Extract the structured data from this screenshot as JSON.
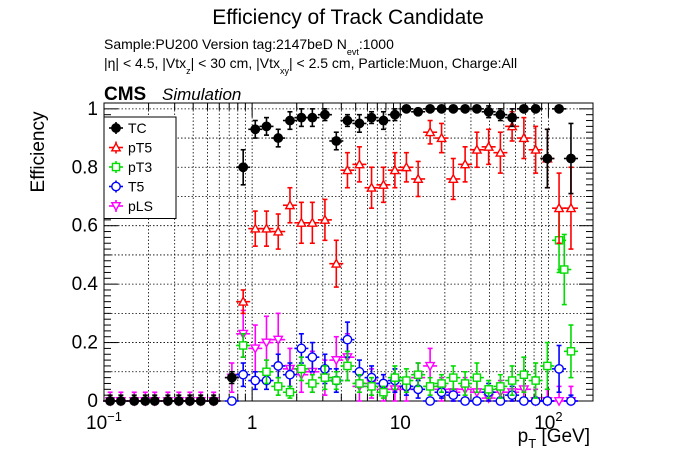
{
  "chart_data": {
    "type": "scatter",
    "title": "Efficiency of Track Candidate",
    "subtitle_lines": [
      "Sample:PU200   Version tag:2147beD  N",
      "evt",
      ":1000",
      "|η| < 4.5, |Vtx",
      "z",
      "| < 30 cm, |Vtx",
      "xy",
      "| < 2.5 cm, Particle:Muon, Charge:All"
    ],
    "cms_label": "CMS",
    "simulation_label": "Simulation",
    "ylabel": "Efficiency",
    "xlabel_main": "p",
    "xlabel_sub": "T",
    "xlabel_unit": " [GeV]",
    "x_scale": "log",
    "xlim": [
      0.1,
      200
    ],
    "ylim": [
      0,
      1.02
    ],
    "grid": true,
    "legend_position": "top-left",
    "x_tick_labels": [
      {
        "value": 0.1,
        "base": "10",
        "exp": "−1"
      },
      {
        "value": 1,
        "base": "1",
        "exp": ""
      },
      {
        "value": 10,
        "base": "10",
        "exp": ""
      },
      {
        "value": 100,
        "base": "10",
        "exp": "2"
      }
    ],
    "y_tick_labels": [
      "0",
      "0.2",
      "0.4",
      "0.6",
      "0.8",
      "1"
    ],
    "series": [
      {
        "name": "TC",
        "color": "#000000",
        "marker": "circle-filled",
        "points": [
          [
            0.11,
            0.0,
            0.02
          ],
          [
            0.13,
            0.0,
            0.02
          ],
          [
            0.16,
            0.0,
            0.02
          ],
          [
            0.19,
            0.0,
            0.02
          ],
          [
            0.22,
            0.0,
            0.02
          ],
          [
            0.27,
            0.0,
            0.02
          ],
          [
            0.32,
            0.0,
            0.02
          ],
          [
            0.38,
            0.0,
            0.02
          ],
          [
            0.45,
            0.0,
            0.02
          ],
          [
            0.55,
            0.0,
            0.02
          ],
          [
            0.73,
            0.08,
            0.02
          ],
          [
            0.87,
            0.8,
            0.06
          ],
          [
            1.05,
            0.93,
            0.03
          ],
          [
            1.25,
            0.94,
            0.03
          ],
          [
            1.5,
            0.9,
            0.03
          ],
          [
            1.8,
            0.96,
            0.03
          ],
          [
            2.15,
            0.97,
            0.03
          ],
          [
            2.55,
            0.97,
            0.03
          ],
          [
            3.1,
            0.98,
            0.02
          ],
          [
            3.7,
            0.89,
            0.03
          ],
          [
            4.4,
            0.96,
            0.02
          ],
          [
            5.3,
            0.95,
            0.03
          ],
          [
            6.4,
            0.97,
            0.02
          ],
          [
            7.7,
            0.96,
            0.03
          ],
          [
            9.2,
            0.98,
            0.02
          ],
          [
            11.0,
            1.0,
            0.01
          ],
          [
            13.2,
            0.99,
            0.01
          ],
          [
            15.9,
            1.0,
            0.01
          ],
          [
            19.0,
            1.0,
            0.01
          ],
          [
            22.8,
            1.0,
            0.01
          ],
          [
            27.4,
            1.0,
            0.01
          ],
          [
            32.9,
            1.0,
            0.01
          ],
          [
            39.5,
            0.99,
            0.02
          ],
          [
            47.4,
            0.98,
            0.02
          ],
          [
            56.9,
            0.97,
            0.03
          ],
          [
            68.3,
            1.0,
            0.01
          ],
          [
            82.0,
            1.0,
            0.01
          ],
          [
            98.4,
            0.83,
            0.1
          ],
          [
            118,
            1.0,
            0.01
          ],
          [
            142,
            0.83,
            0.12
          ]
        ]
      },
      {
        "name": "pT5",
        "color": "#ff0000",
        "marker": "triangle-open",
        "points": [
          [
            0.87,
            0.34,
            0.04
          ],
          [
            1.05,
            0.59,
            0.06
          ],
          [
            1.25,
            0.59,
            0.06
          ],
          [
            1.5,
            0.58,
            0.06
          ],
          [
            1.8,
            0.67,
            0.06
          ],
          [
            2.15,
            0.61,
            0.07
          ],
          [
            2.55,
            0.61,
            0.07
          ],
          [
            3.1,
            0.62,
            0.07
          ],
          [
            3.7,
            0.47,
            0.08
          ],
          [
            4.4,
            0.79,
            0.06
          ],
          [
            5.3,
            0.81,
            0.06
          ],
          [
            6.4,
            0.73,
            0.07
          ],
          [
            7.7,
            0.74,
            0.06
          ],
          [
            9.2,
            0.79,
            0.06
          ],
          [
            11.0,
            0.8,
            0.05
          ],
          [
            13.2,
            0.76,
            0.06
          ],
          [
            15.9,
            0.92,
            0.04
          ],
          [
            19.0,
            0.9,
            0.05
          ],
          [
            22.8,
            0.76,
            0.07
          ],
          [
            27.4,
            0.81,
            0.06
          ],
          [
            32.9,
            0.86,
            0.06
          ],
          [
            39.5,
            0.87,
            0.06
          ],
          [
            47.4,
            0.85,
            0.07
          ],
          [
            56.9,
            0.94,
            0.05
          ],
          [
            68.3,
            0.9,
            0.07
          ],
          [
            82.0,
            0.86,
            0.08
          ],
          [
            98.4,
            0.83,
            0.1
          ],
          [
            118,
            0.66,
            0.12
          ],
          [
            142,
            0.66,
            0.14
          ]
        ]
      },
      {
        "name": "pT3",
        "color": "#00dd00",
        "marker": "square-open",
        "points": [
          [
            0.87,
            0.19,
            0.04
          ],
          [
            1.25,
            0.1,
            0.04
          ],
          [
            1.5,
            0.05,
            0.03
          ],
          [
            1.8,
            0.03,
            0.02
          ],
          [
            2.15,
            0.11,
            0.04
          ],
          [
            2.55,
            0.06,
            0.03
          ],
          [
            3.1,
            0.08,
            0.04
          ],
          [
            3.7,
            0.07,
            0.03
          ],
          [
            4.4,
            0.12,
            0.05
          ],
          [
            5.3,
            0.06,
            0.03
          ],
          [
            6.4,
            0.05,
            0.03
          ],
          [
            7.7,
            0.03,
            0.02
          ],
          [
            9.2,
            0.08,
            0.04
          ],
          [
            11.0,
            0.07,
            0.04
          ],
          [
            13.2,
            0.09,
            0.04
          ],
          [
            15.9,
            0.05,
            0.03
          ],
          [
            19.0,
            0.06,
            0.03
          ],
          [
            22.8,
            0.08,
            0.04
          ],
          [
            27.4,
            0.06,
            0.04
          ],
          [
            32.9,
            0.08,
            0.05
          ],
          [
            39.5,
            0.04,
            0.03
          ],
          [
            47.4,
            0.05,
            0.04
          ],
          [
            56.9,
            0.07,
            0.05
          ],
          [
            68.3,
            0.09,
            0.06
          ],
          [
            82.0,
            0.07,
            0.06
          ],
          [
            98.4,
            0.12,
            0.08
          ],
          [
            118,
            0.55,
            0.11
          ],
          [
            128,
            0.45,
            0.12
          ],
          [
            142,
            0.17,
            0.09
          ]
        ]
      },
      {
        "name": "T5",
        "color": "#0000ff",
        "marker": "circle-open",
        "points": [
          [
            0.73,
            0.0,
            0.01
          ],
          [
            0.87,
            0.09,
            0.04
          ],
          [
            1.05,
            0.07,
            0.03
          ],
          [
            1.25,
            0.07,
            0.03
          ],
          [
            1.5,
            0.12,
            0.04
          ],
          [
            1.8,
            0.09,
            0.04
          ],
          [
            2.15,
            0.18,
            0.05
          ],
          [
            2.55,
            0.15,
            0.05
          ],
          [
            3.1,
            0.11,
            0.05
          ],
          [
            3.7,
            0.07,
            0.04
          ],
          [
            4.4,
            0.21,
            0.06
          ],
          [
            5.3,
            0.1,
            0.04
          ],
          [
            6.4,
            0.08,
            0.04
          ],
          [
            7.7,
            0.06,
            0.03
          ],
          [
            9.2,
            0.07,
            0.04
          ],
          [
            11.0,
            0.05,
            0.03
          ],
          [
            13.2,
            0.04,
            0.03
          ],
          [
            15.9,
            0.0,
            0.01
          ],
          [
            19.0,
            0.03,
            0.02
          ],
          [
            22.8,
            0.02,
            0.02
          ],
          [
            27.4,
            0.0,
            0.01
          ],
          [
            32.9,
            0.0,
            0.01
          ],
          [
            39.5,
            0.03,
            0.03
          ],
          [
            47.4,
            0.0,
            0.01
          ],
          [
            56.9,
            0.02,
            0.03
          ],
          [
            68.3,
            0.0,
            0.01
          ],
          [
            82.0,
            0.0,
            0.01
          ],
          [
            98.4,
            0.0,
            0.01
          ],
          [
            118,
            0.11,
            0.08
          ],
          [
            142,
            0.0,
            0.02
          ]
        ]
      },
      {
        "name": "pLS",
        "color": "#ff00ff",
        "marker": "triangle-down-open",
        "points": [
          [
            0.11,
            0.0,
            0.03
          ],
          [
            0.13,
            0.0,
            0.03
          ],
          [
            0.16,
            0.0,
            0.03
          ],
          [
            0.19,
            0.0,
            0.03
          ],
          [
            0.22,
            0.0,
            0.03
          ],
          [
            0.27,
            0.0,
            0.03
          ],
          [
            0.32,
            0.0,
            0.03
          ],
          [
            0.38,
            0.0,
            0.03
          ],
          [
            0.45,
            0.0,
            0.03
          ],
          [
            0.55,
            0.0,
            0.03
          ],
          [
            0.73,
            0.08,
            0.05
          ],
          [
            0.87,
            0.23,
            0.08
          ],
          [
            1.05,
            0.18,
            0.08
          ],
          [
            1.25,
            0.2,
            0.09
          ],
          [
            1.5,
            0.21,
            0.09
          ],
          [
            1.8,
            0.11,
            0.07
          ],
          [
            2.15,
            0.09,
            0.06
          ],
          [
            2.55,
            0.1,
            0.07
          ],
          [
            3.1,
            0.08,
            0.06
          ],
          [
            3.7,
            0.14,
            0.08
          ],
          [
            4.4,
            0.15,
            0.08
          ],
          [
            5.3,
            0.05,
            0.05
          ],
          [
            6.4,
            0.06,
            0.05
          ],
          [
            7.7,
            0.04,
            0.05
          ],
          [
            9.2,
            0.04,
            0.05
          ],
          [
            11.0,
            0.04,
            0.04
          ],
          [
            13.2,
            0.08,
            0.05
          ],
          [
            15.9,
            0.12,
            0.06
          ],
          [
            19.0,
            0.04,
            0.04
          ],
          [
            22.8,
            0.03,
            0.04
          ],
          [
            27.4,
            0.04,
            0.04
          ],
          [
            32.9,
            0.03,
            0.04
          ],
          [
            39.5,
            0.01,
            0.04
          ],
          [
            47.4,
            0.03,
            0.04
          ],
          [
            56.9,
            0.03,
            0.04
          ],
          [
            68.3,
            0.04,
            0.05
          ],
          [
            82.0,
            0.0,
            0.04
          ],
          [
            98.4,
            0.0,
            0.04
          ],
          [
            118,
            0.0,
            0.05
          ],
          [
            142,
            0.0,
            0.05
          ]
        ]
      }
    ]
  }
}
